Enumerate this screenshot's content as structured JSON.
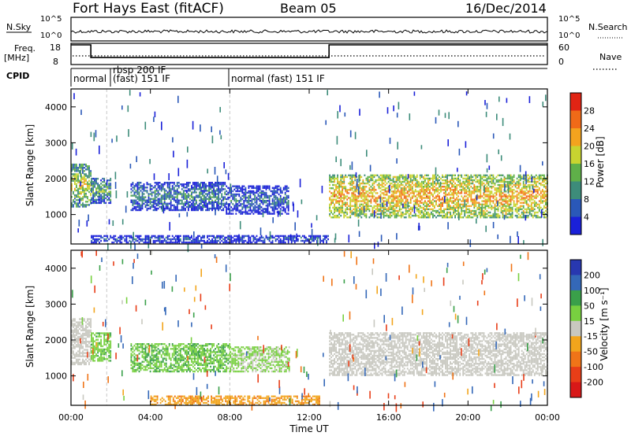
{
  "header": {
    "station": "Fort Hays East (fitACF)",
    "beam": "Beam 05",
    "date": "16/Dec/2014"
  },
  "noise_panel": {
    "left_label": "N.Sky",
    "right_label": "N.Search",
    "left_ticks": [
      "10^5",
      "10^0"
    ],
    "right_ticks": [
      "10^5",
      "10^0"
    ]
  },
  "freq_panel": {
    "left_label_1": "Freq.",
    "left_label_2": "[MHz]",
    "right_label": "Nave",
    "left_ticks": [
      "18",
      "8"
    ],
    "right_ticks": [
      "60",
      "0"
    ]
  },
  "cpid_panel": {
    "label": "CPID",
    "modes": [
      "normal",
      "rbsp 200 IF",
      "(fast) 151 IF",
      "normal (fast) 151 IF"
    ]
  },
  "x_axis": {
    "label": "Time UT",
    "ticks": [
      "00:00",
      "04:00",
      "08:00",
      "12:00",
      "16:00",
      "20:00",
      "00:00"
    ]
  },
  "y_axis": {
    "label": "Slant Range [km]",
    "ticks": [
      "1000",
      "2000",
      "3000",
      "4000"
    ]
  },
  "power_colorbar": {
    "label": "Power [dB]",
    "ticks": [
      "4",
      "8",
      "12",
      "16",
      "20",
      "24",
      "28"
    ],
    "colors": [
      "#1a20d8",
      "#2a58b8",
      "#3d8c7a",
      "#5fb049",
      "#c8d430",
      "#f3a31e",
      "#f06a18",
      "#e12414"
    ]
  },
  "velocity_colorbar": {
    "label": "Velocity [m s⁻¹]",
    "ticks": [
      "200",
      "100",
      "50",
      "15",
      "-15",
      "-50",
      "-100",
      "-200"
    ],
    "colors": [
      "#2838b0",
      "#3468b8",
      "#3aa04a",
      "#78d040",
      "#c8c8c0",
      "#f2a51c",
      "#f07418",
      "#e83e18",
      "#d81818"
    ]
  },
  "chart_data": {
    "type": "heatmap",
    "x_unit": "hours UT",
    "xlim": [
      0,
      24
    ],
    "ylim": [
      180,
      4500
    ],
    "frequency_MHz": [
      {
        "x_start": 0,
        "x_end": 1.0,
        "value": 18
      },
      {
        "x_start": 1.0,
        "x_end": 13.0,
        "value": 11
      },
      {
        "x_start": 13.0,
        "x_end": 24,
        "value": 18
      }
    ],
    "cpid_segments": [
      {
        "x_start": 0,
        "x_end": 1.8,
        "label": "normal"
      },
      {
        "x_start": 1.8,
        "x_end": 8.0,
        "label": "rbsp 200 IF / (fast) 151 IF"
      },
      {
        "x_start": 8.0,
        "x_end": 24,
        "label": "normal (fast) 151 IF"
      }
    ],
    "power_regions": [
      {
        "t0": 0.0,
        "t1": 1.0,
        "r0": 1200,
        "r1": 2400,
        "dB": 18
      },
      {
        "t0": 1.0,
        "t1": 2.0,
        "r0": 1300,
        "r1": 2000,
        "dB": 14
      },
      {
        "t0": 3.0,
        "t1": 7.8,
        "r0": 1100,
        "r1": 1900,
        "dB": 11
      },
      {
        "t0": 7.8,
        "t1": 11.0,
        "r0": 1000,
        "r1": 1800,
        "dB": 9
      },
      {
        "t0": 1.0,
        "t1": 13.0,
        "r0": 200,
        "r1": 400,
        "dB": 8
      },
      {
        "t0": 13.0,
        "t1": 24.0,
        "r0": 900,
        "r1": 2100,
        "dB": 22
      }
    ],
    "velocity_regions": [
      {
        "t0": 0.0,
        "t1": 1.0,
        "r0": 1300,
        "r1": 2600,
        "v": 0
      },
      {
        "t0": 1.0,
        "t1": 2.0,
        "r0": 1400,
        "r1": 2200,
        "v": 40
      },
      {
        "t0": 3.0,
        "t1": 8.0,
        "r0": 1100,
        "r1": 1900,
        "v": 45
      },
      {
        "t0": 8.0,
        "t1": 11.0,
        "r0": 1100,
        "r1": 1800,
        "v": 20
      },
      {
        "t0": 4.0,
        "t1": 12.5,
        "r0": 180,
        "r1": 450,
        "v": -40
      },
      {
        "t0": 13.0,
        "t1": 24.0,
        "r0": 1000,
        "r1": 2200,
        "v": 0
      }
    ]
  }
}
